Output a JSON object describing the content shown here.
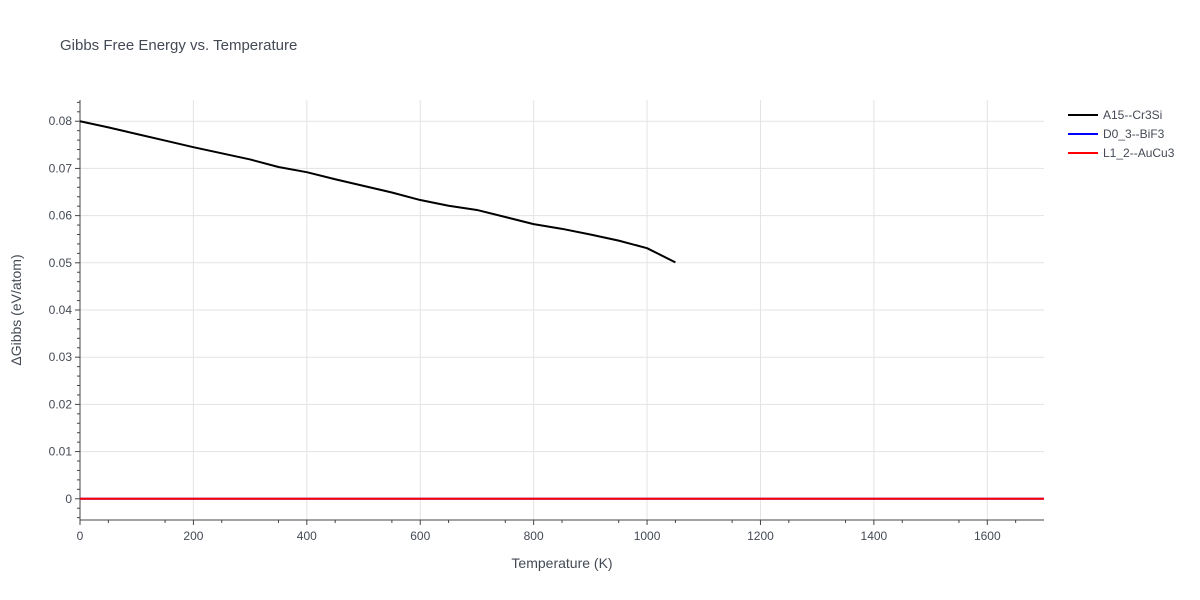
{
  "chart_data": {
    "type": "line",
    "title": "Gibbs Free Energy vs. Temperature",
    "xlabel": "Temperature (K)",
    "ylabel": "ΔGibbs (eV/atom)",
    "xlim": [
      0,
      1700
    ],
    "ylim": [
      -0.0045,
      0.0845
    ],
    "x_ticks": [
      0,
      200,
      400,
      600,
      800,
      1000,
      1200,
      1400,
      1600
    ],
    "y_ticks": [
      0,
      0.01,
      0.02,
      0.03,
      0.04,
      0.05,
      0.06,
      0.07,
      0.08
    ],
    "y_tick_labels": [
      "0",
      "0.01",
      "0.02",
      "0.03",
      "0.04",
      "0.05",
      "0.06",
      "0.07",
      "0.08"
    ],
    "grid": true,
    "legend_position": "top-right",
    "series": [
      {
        "name": "A15--Cr3Si",
        "color": "#000000",
        "x": [
          0,
          50,
          100,
          150,
          200,
          250,
          300,
          350,
          400,
          450,
          500,
          550,
          600,
          650,
          700,
          750,
          800,
          850,
          900,
          950,
          1000,
          1050
        ],
        "y": [
          0.08,
          0.0787,
          0.0773,
          0.0759,
          0.0745,
          0.0732,
          0.0719,
          0.0703,
          0.0692,
          0.0677,
          0.0663,
          0.0649,
          0.0633,
          0.0621,
          0.0612,
          0.0597,
          0.0582,
          0.0572,
          0.056,
          0.0547,
          0.0531,
          0.0501
        ]
      },
      {
        "name": "D0_3--BiF3",
        "color": "#0000ff",
        "x": [
          0,
          1700
        ],
        "y": [
          0,
          0
        ]
      },
      {
        "name": "L1_2--AuCu3",
        "color": "#ff0000",
        "x": [
          0,
          1700
        ],
        "y": [
          0,
          0
        ]
      }
    ]
  }
}
